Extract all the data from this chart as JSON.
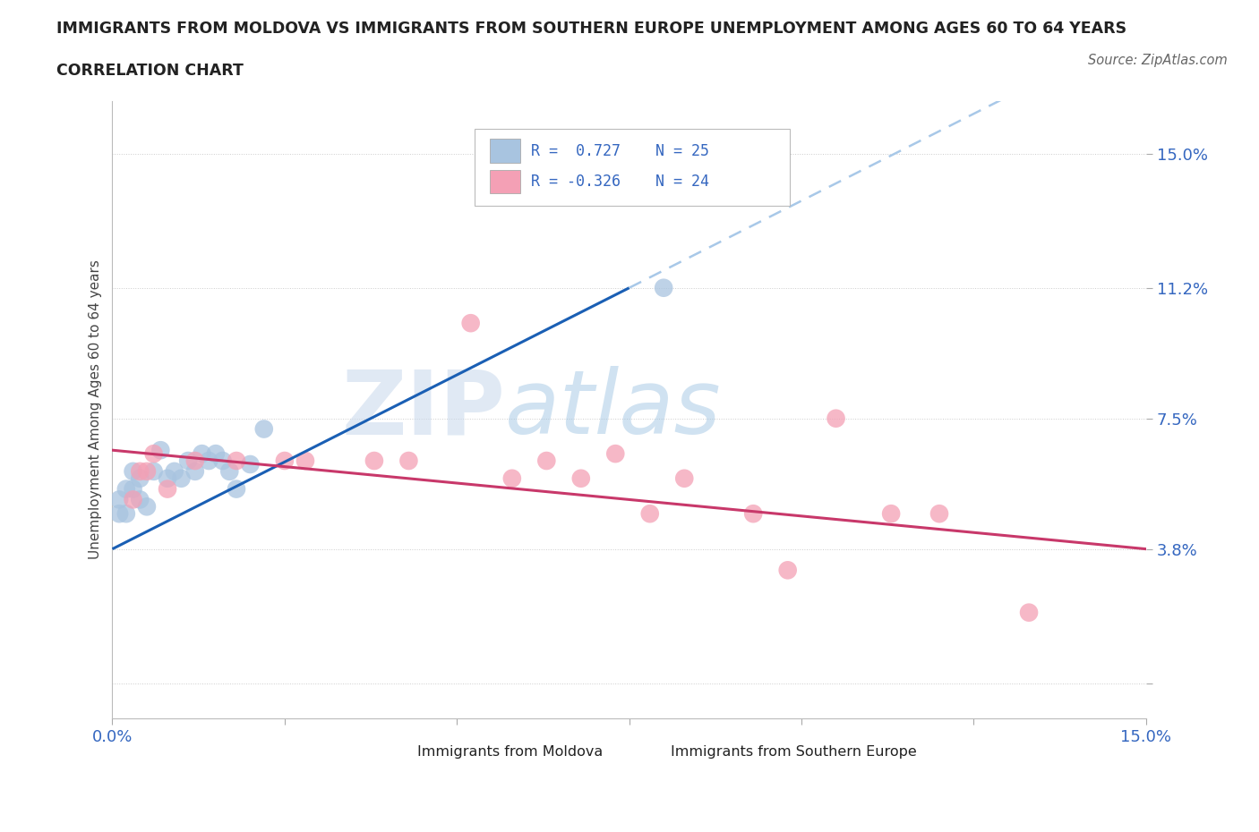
{
  "title_line1": "IMMIGRANTS FROM MOLDOVA VS IMMIGRANTS FROM SOUTHERN EUROPE UNEMPLOYMENT AMONG AGES 60 TO 64 YEARS",
  "title_line2": "CORRELATION CHART",
  "source_text": "Source: ZipAtlas.com",
  "ylabel": "Unemployment Among Ages 60 to 64 years",
  "xlim": [
    0.0,
    0.15
  ],
  "ylim": [
    -0.01,
    0.165
  ],
  "yticks": [
    0.0,
    0.038,
    0.075,
    0.112,
    0.15
  ],
  "ytick_labels": [
    "",
    "3.8%",
    "7.5%",
    "11.2%",
    "15.0%"
  ],
  "xticks": [
    0.0,
    0.025,
    0.05,
    0.075,
    0.1,
    0.125,
    0.15
  ],
  "xtick_labels": [
    "0.0%",
    "",
    "",
    "",
    "",
    "",
    "15.0%"
  ],
  "r_moldova": 0.727,
  "n_moldova": 25,
  "r_south_europe": -0.326,
  "n_south_europe": 24,
  "moldova_color": "#a8c4e0",
  "south_europe_color": "#f4a0b5",
  "moldova_line_color": "#1a5fb4",
  "south_europe_line_color": "#c8386a",
  "dashed_line_color": "#a8c8e8",
  "background_color": "#ffffff",
  "watermark_color": "#dce8f5",
  "moldova_points_x": [
    0.001,
    0.001,
    0.002,
    0.002,
    0.003,
    0.003,
    0.004,
    0.004,
    0.005,
    0.006,
    0.007,
    0.008,
    0.009,
    0.01,
    0.011,
    0.012,
    0.013,
    0.014,
    0.015,
    0.016,
    0.017,
    0.018,
    0.02,
    0.022,
    0.08
  ],
  "moldova_points_y": [
    0.048,
    0.052,
    0.048,
    0.055,
    0.055,
    0.06,
    0.052,
    0.058,
    0.05,
    0.06,
    0.066,
    0.058,
    0.06,
    0.058,
    0.063,
    0.06,
    0.065,
    0.063,
    0.065,
    0.063,
    0.06,
    0.055,
    0.062,
    0.072,
    0.112
  ],
  "south_europe_points_x": [
    0.003,
    0.004,
    0.005,
    0.006,
    0.008,
    0.012,
    0.018,
    0.025,
    0.028,
    0.038,
    0.043,
    0.052,
    0.058,
    0.063,
    0.068,
    0.073,
    0.078,
    0.083,
    0.093,
    0.098,
    0.105,
    0.113,
    0.12,
    0.133
  ],
  "south_europe_points_y": [
    0.052,
    0.06,
    0.06,
    0.065,
    0.055,
    0.063,
    0.063,
    0.063,
    0.063,
    0.063,
    0.063,
    0.102,
    0.058,
    0.063,
    0.058,
    0.065,
    0.048,
    0.058,
    0.048,
    0.032,
    0.075,
    0.048,
    0.048,
    0.02
  ],
  "legend_r1_text": "R =  0.727",
  "legend_n1_text": "N = 25",
  "legend_r2_text": "R = -0.326",
  "legend_n2_text": "N = 24"
}
